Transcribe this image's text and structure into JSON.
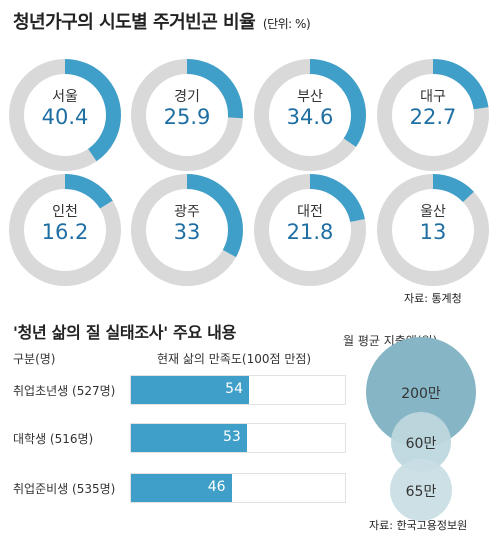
{
  "title": "청년가구의 시도별 주거빈곤 비율",
  "title_unit": "(단위: %)",
  "source_1": "자료: 통계청",
  "chart_data": [
    {
      "type": "pie",
      "title": "청년가구의 시도별 주거빈곤 비율",
      "unit": "%",
      "categories": [
        "서울",
        "경기",
        "부산",
        "대구",
        "인천",
        "광주",
        "대전",
        "울산"
      ],
      "values": [
        40.4,
        25.9,
        34.6,
        22.7,
        16.2,
        33,
        21.8,
        13
      ],
      "fill_color": "#3f9fc9",
      "track_color": "#d9d9d9"
    },
    {
      "type": "bar",
      "title": "'청년 삶의 질 실태조사' 주요 내용",
      "category_header": "구분(명)",
      "value_header": "현재 삶의 만족도(100점 만점)",
      "categories": [
        "취업초년생 (527명)",
        "대학생 (516명)",
        "취업준비생 (535명)"
      ],
      "values": [
        54,
        53,
        46
      ],
      "ylim": [
        0,
        100
      ],
      "color": "#3f9fc9"
    },
    {
      "type": "scatter",
      "title": "월 평균 지출액(원)",
      "labels": [
        "200만",
        "60만",
        "65만"
      ],
      "values": [
        200,
        60,
        65
      ],
      "colors": [
        "#86b6c6",
        "#bed7de",
        "#c9dee4"
      ],
      "source": "자료: 한국고용정보원"
    }
  ]
}
